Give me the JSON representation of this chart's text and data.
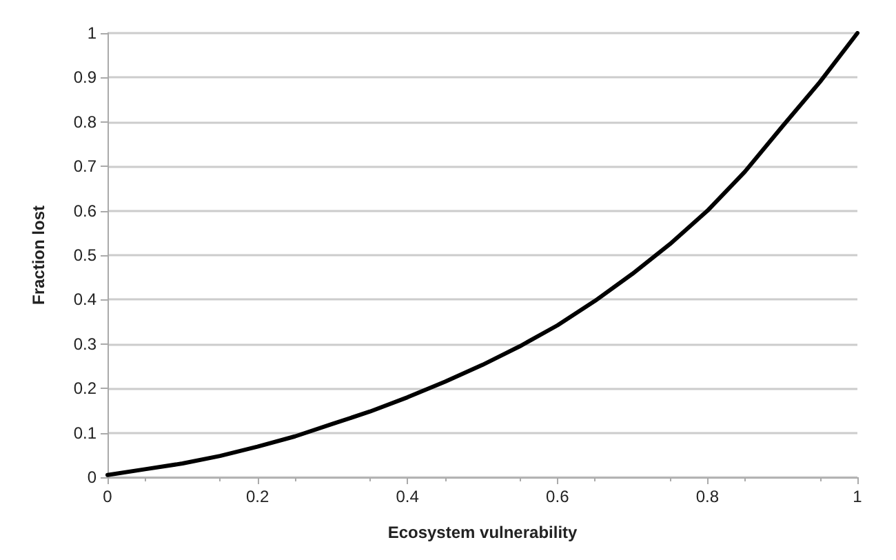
{
  "chart_data": {
    "type": "line",
    "xlabel": "Ecosystem vulnerability",
    "ylabel": "Fraction lost",
    "x": [
      0,
      0.05,
      0.1,
      0.15,
      0.2,
      0.25,
      0.3,
      0.35,
      0.4,
      0.45,
      0.5,
      0.55,
      0.6,
      0.65,
      0.7,
      0.75,
      0.8,
      0.85,
      0.9,
      0.95,
      1
    ],
    "series": [
      {
        "color": "#000000",
        "values": [
          0.005,
          0.018,
          0.031,
          0.048,
          0.069,
          0.092,
          0.12,
          0.148,
          0.18,
          0.215,
          0.253,
          0.295,
          0.342,
          0.397,
          0.458,
          0.525,
          0.6,
          0.688,
          0.79,
          0.89,
          1
        ]
      }
    ],
    "xlim": [
      0,
      1
    ],
    "xticks": [
      0,
      0.2,
      0.4,
      0.6,
      0.8,
      1
    ],
    "ylim": [
      0,
      1
    ],
    "yticks": [
      0,
      0.1,
      0.2,
      0.3,
      0.4,
      0.5,
      0.6,
      0.7,
      0.8,
      0.9,
      1
    ],
    "grid": "y",
    "marker": "none",
    "line_style": "solid"
  }
}
